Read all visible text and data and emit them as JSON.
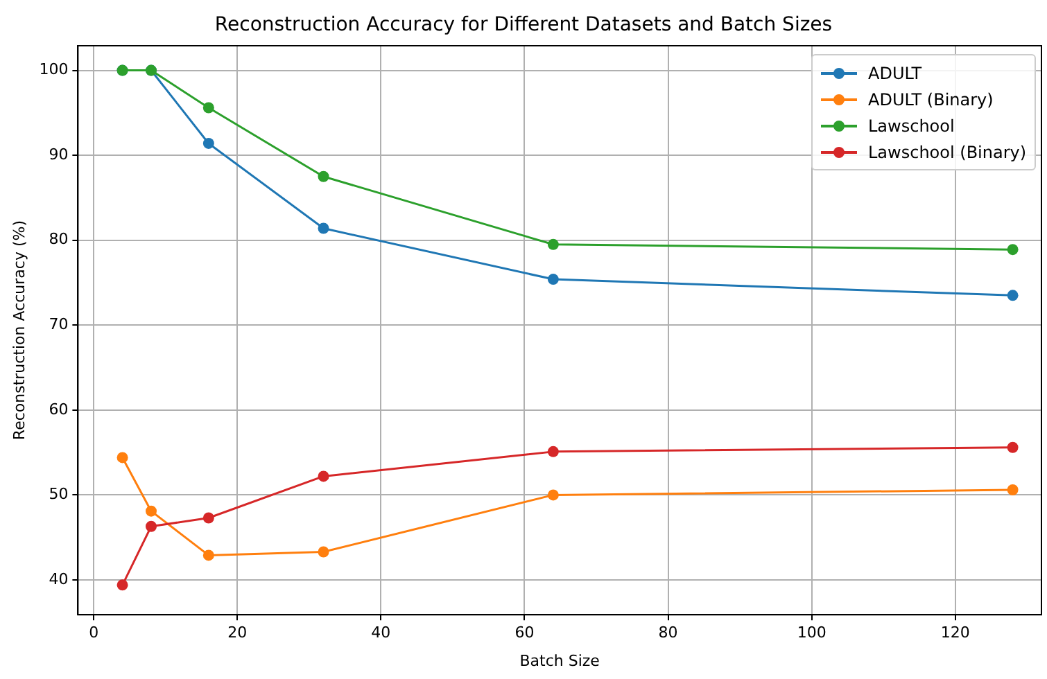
{
  "chart_data": {
    "type": "line",
    "title": "Reconstruction Accuracy for Different Datasets and Batch Sizes",
    "xlabel": "Batch Size",
    "ylabel": "Reconstruction Accuracy (%)",
    "x": [
      4,
      8,
      16,
      32,
      64,
      128
    ],
    "series": [
      {
        "name": "ADULT",
        "color": "#1f77b4",
        "values": [
          100,
          100,
          91.4,
          81.4,
          75.4,
          73.5
        ]
      },
      {
        "name": "ADULT (Binary)",
        "color": "#ff7f0e",
        "values": [
          54.4,
          48.1,
          42.9,
          43.3,
          50.0,
          50.6
        ]
      },
      {
        "name": "Lawschool",
        "color": "#2ca02c",
        "values": [
          100,
          100,
          95.6,
          87.5,
          79.5,
          78.9
        ]
      },
      {
        "name": "Lawschool (Binary)",
        "color": "#d62728",
        "values": [
          39.4,
          46.3,
          47.3,
          52.2,
          55.1,
          55.6
        ]
      }
    ],
    "xlim": [
      -2.2,
      132
    ],
    "xticks": [
      0,
      20,
      40,
      60,
      80,
      100,
      120
    ],
    "ylim": [
      35.9,
      102.9
    ],
    "yticks": [
      40,
      50,
      60,
      70,
      80,
      90,
      100
    ],
    "grid": true,
    "legend": "top right",
    "marker": "circle",
    "line_style": "solid"
  }
}
